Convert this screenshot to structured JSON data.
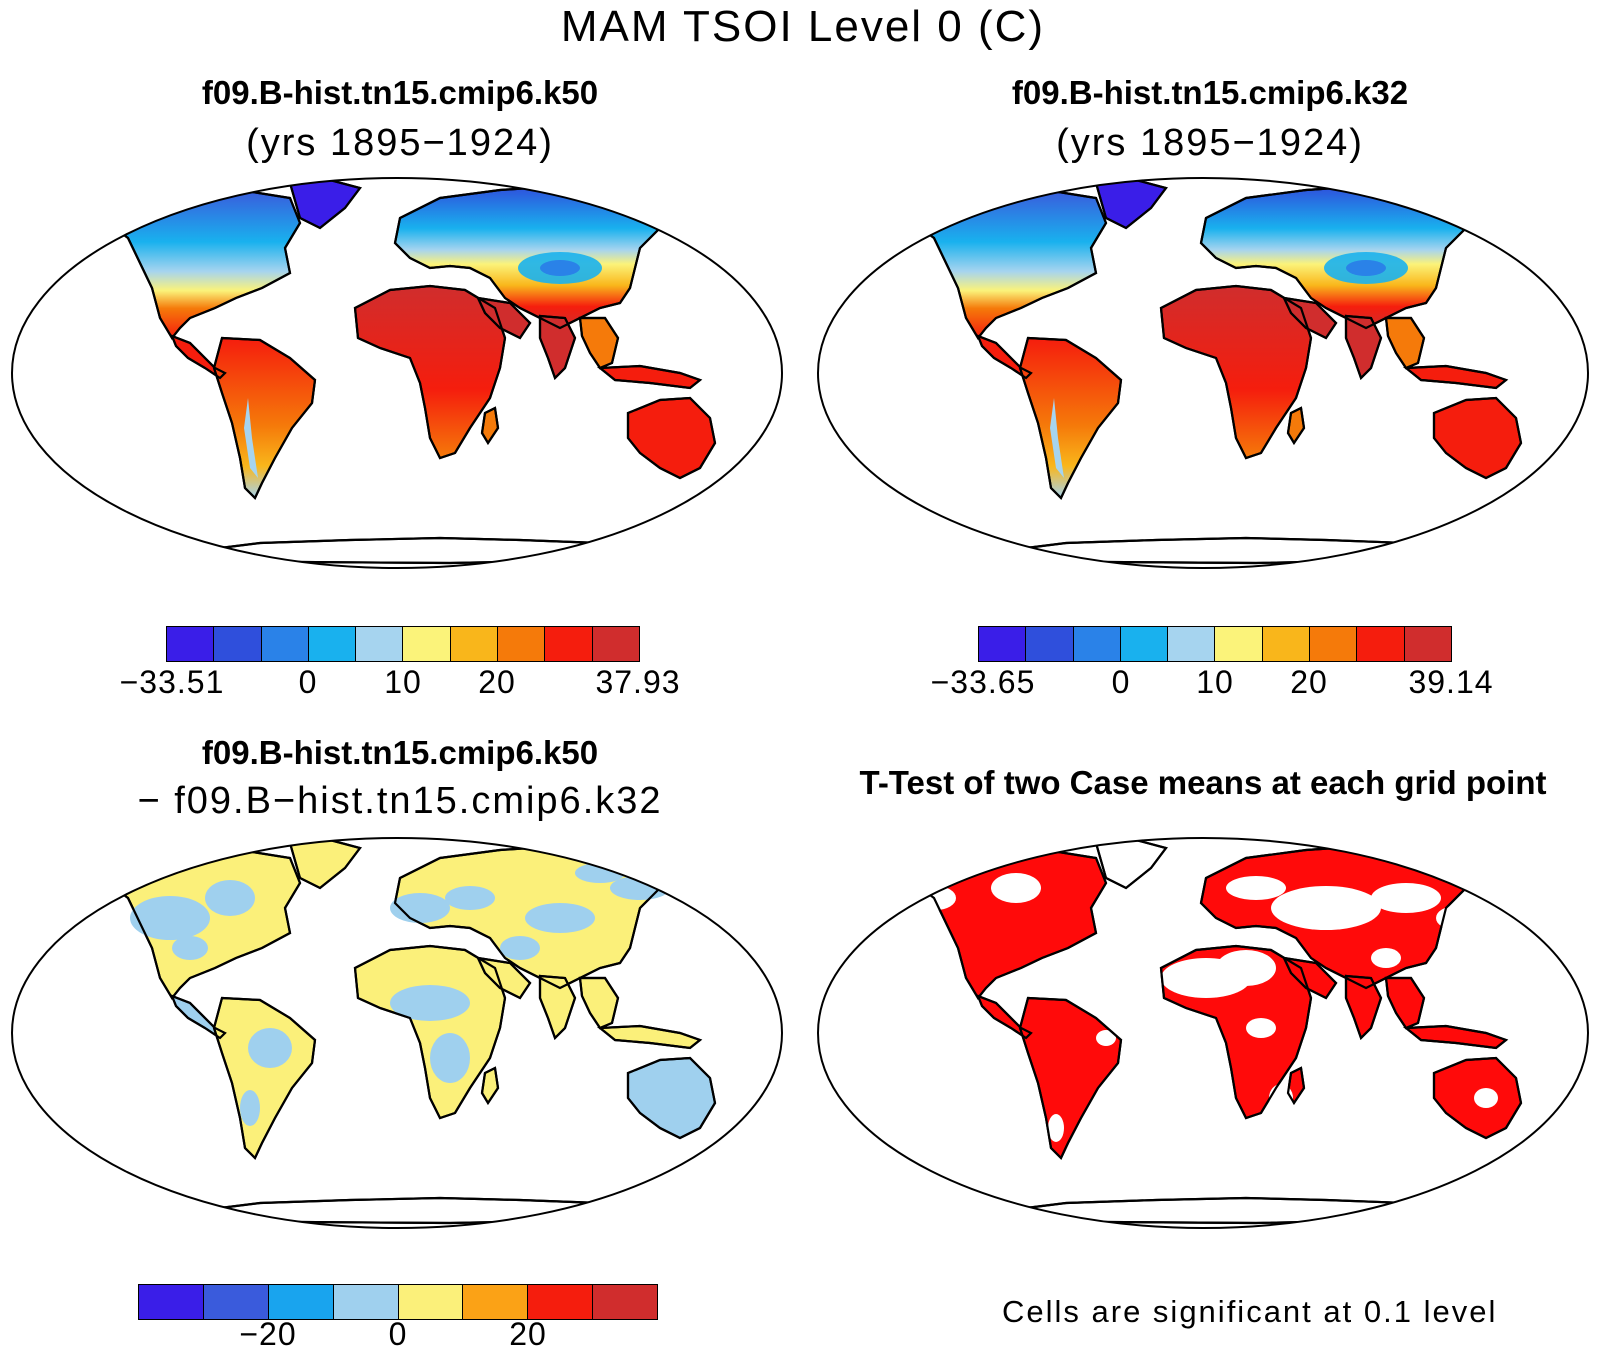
{
  "title": "MAM TSOI Level 0 (C)",
  "panels": [
    {
      "id": "k50",
      "title": "f09.B-hist.tn15.cmip6.k50",
      "subtitle": "(yrs 1895−1924)",
      "colorbar": {
        "colors": [
          "#3a1ee8",
          "#2f4fdc",
          "#2a82e8",
          "#19b1ee",
          "#a6d4ef",
          "#fbf37a",
          "#f9b61b",
          "#f57a0a",
          "#f51d0d",
          "#d02d2d"
        ],
        "labels": [
          "−33.51",
          "0",
          "10",
          "20",
          "37.93"
        ]
      }
    },
    {
      "id": "k32",
      "title": "f09.B-hist.tn15.cmip6.k32",
      "subtitle": "(yrs 1895−1924)",
      "colorbar": {
        "colors": [
          "#3a1ee8",
          "#2f4fdc",
          "#2a82e8",
          "#19b1ee",
          "#a6d4ef",
          "#fbf37a",
          "#f9b61b",
          "#f57a0a",
          "#f51d0d",
          "#d02d2d"
        ],
        "labels": [
          "−33.65",
          "0",
          "10",
          "20",
          "39.14"
        ]
      }
    },
    {
      "id": "diff",
      "title": "f09.B-hist.tn15.cmip6.k50",
      "subtitle": "− f09.B−hist.tn15.cmip6.k32",
      "colorbar": {
        "colors": [
          "#3a1ee8",
          "#3a5bdc",
          "#19a4ee",
          "#9fd0ee",
          "#fbf07a",
          "#fba216",
          "#f51d0d",
          "#d02d2d"
        ],
        "labels": [
          "−20",
          "0",
          "20"
        ]
      }
    },
    {
      "id": "ttest",
      "title": "T-Test of two Case means at each grid point",
      "note": "Cells are significant at 0.1 level"
    }
  ]
}
